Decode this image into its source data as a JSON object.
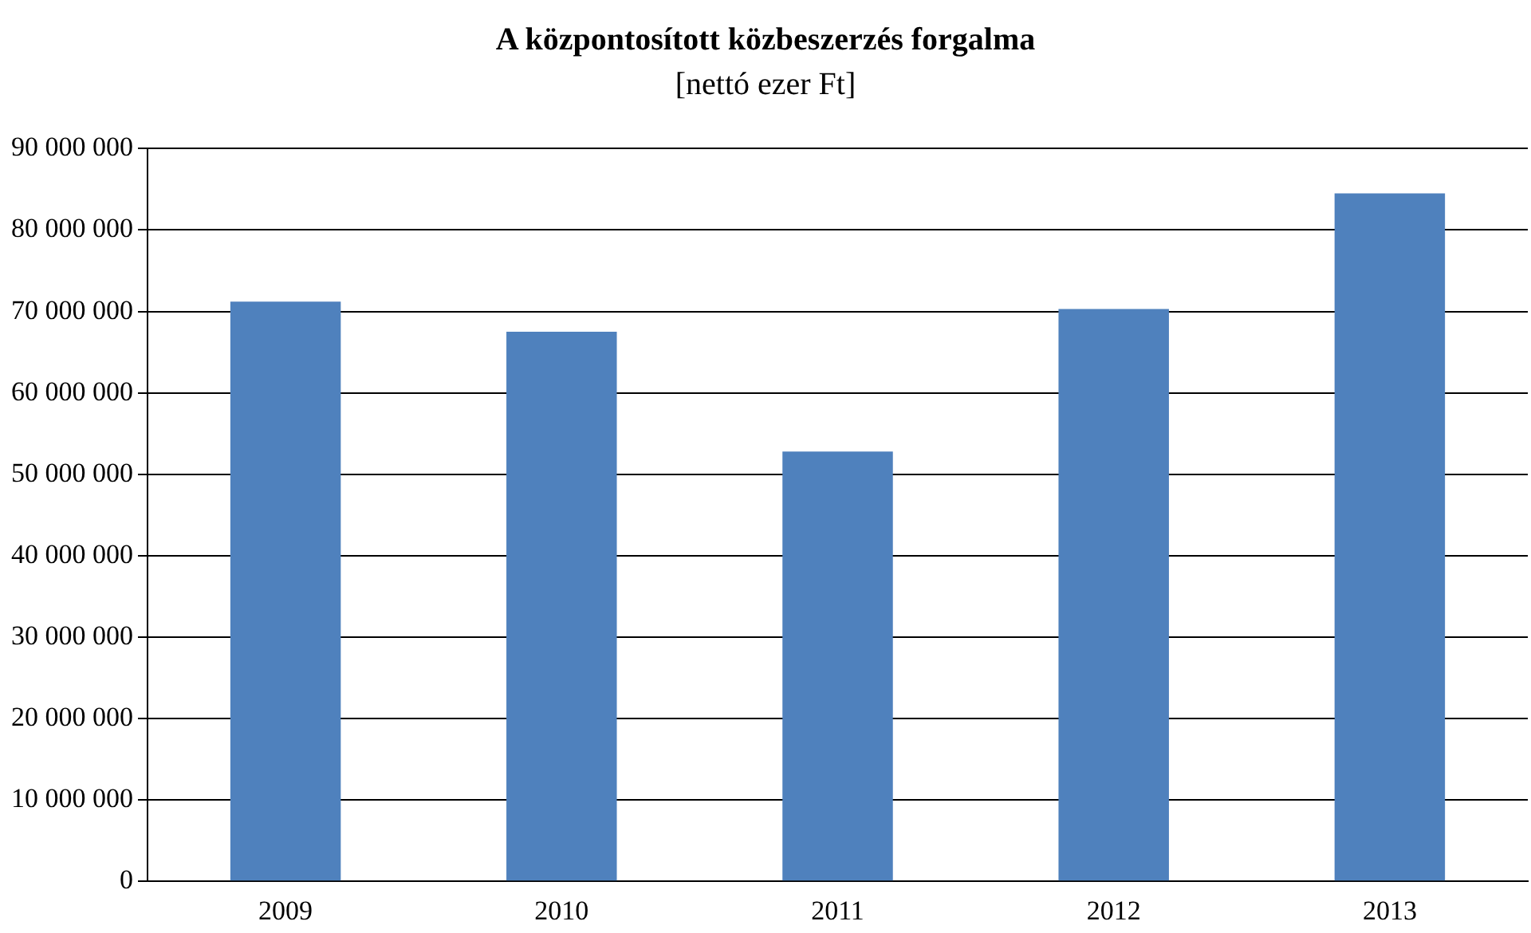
{
  "chart_data": {
    "type": "bar",
    "title": "A központosított közbeszerzés forgalma",
    "subtitle": "[nettó ezer Ft]",
    "categories": [
      "2009",
      "2010",
      "2011",
      "2012",
      "2013"
    ],
    "values": [
      71200000,
      67500000,
      52800000,
      70300000,
      84500000
    ],
    "color": "#4f81bd",
    "ylim": [
      0,
      90000000
    ],
    "yticks": [
      {
        "value": 0,
        "label": "0"
      },
      {
        "value": 10000000,
        "label": "10 000 000"
      },
      {
        "value": 20000000,
        "label": "20 000 000"
      },
      {
        "value": 30000000,
        "label": "30 000 000"
      },
      {
        "value": 40000000,
        "label": "40 000 000"
      },
      {
        "value": 50000000,
        "label": "50 000 000"
      },
      {
        "value": 60000000,
        "label": "60 000 000"
      },
      {
        "value": 70000000,
        "label": "70 000 000"
      },
      {
        "value": 80000000,
        "label": "80 000 000"
      },
      {
        "value": 90000000,
        "label": "90 000 000"
      }
    ],
    "grid": "y",
    "legend": false
  }
}
